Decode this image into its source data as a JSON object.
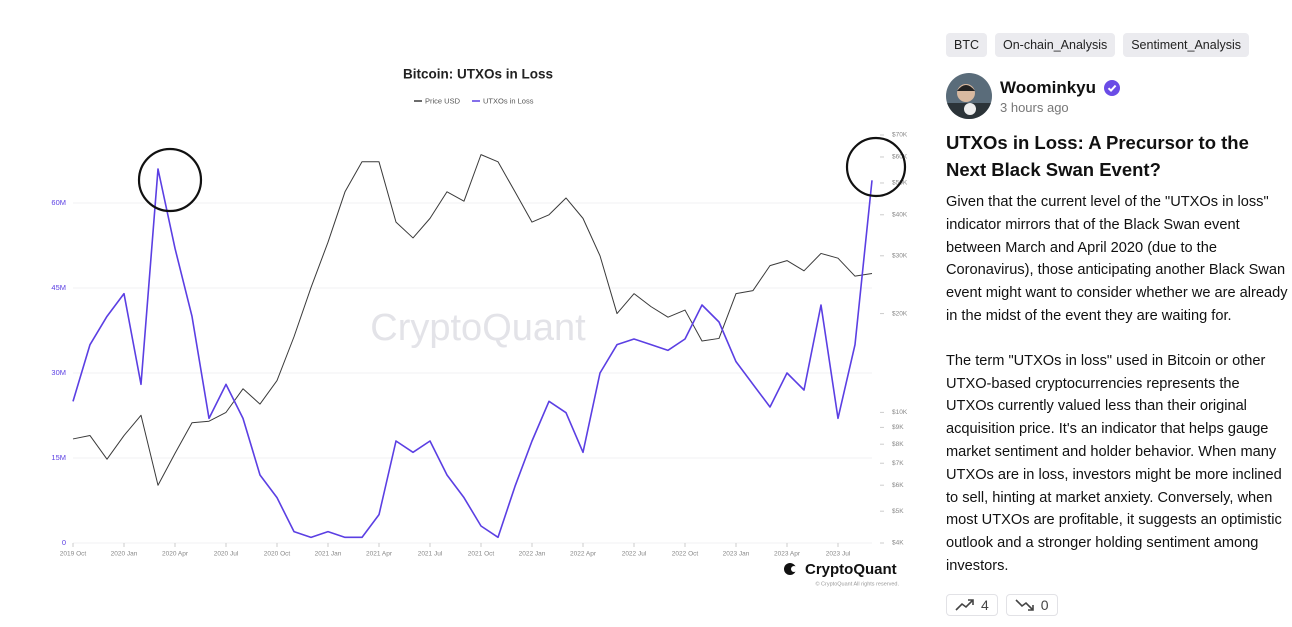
{
  "tags": [
    "BTC",
    "On-chain_Analysis",
    "Sentiment_Analysis"
  ],
  "author": {
    "name": "Woominkyu",
    "time": "3 hours ago"
  },
  "post": {
    "title": "UTXOs in Loss: A Precursor to the Next Black Swan Event?",
    "paragraphs": [
      "Given that the current level of the \"UTXOs in loss\" indicator mirrors that of the Black Swan event between March and April 2020 (due to the Coronavirus), those anticipating another Black Swan event might want to consider whether we are already in the midst of the event they are waiting for.",
      "The term \"UTXOs in loss\" used in Bitcoin or other UTXO-based cryptocurrencies represents the UTXOs currently valued less than their original acquisition price. It's an indicator that helps gauge market sentiment and holder behavior. When many UTXOs are in loss, investors might be more inclined to sell, hinting at market anxiety. Conversely, when most UTXOs are profitable, it suggests an optimistic outlook and a stronger holding sentiment among investors."
    ]
  },
  "reactions": [
    {
      "count": 4
    },
    {
      "count": 0
    }
  ],
  "chart_data": {
    "type": "line",
    "title": "Bitcoin: UTXOs in Loss",
    "watermark": "CryptoQuant",
    "source": "CryptoQuant",
    "copyright": "© CryptoQuant All rights reserved.",
    "categories": [
      "2019 Oct",
      null,
      null,
      "2020 Jan",
      null,
      null,
      "2020 Apr",
      null,
      null,
      "2020 Jul",
      null,
      null,
      "2020 Oct",
      null,
      null,
      "2021 Jan",
      null,
      null,
      "2021 Apr",
      null,
      null,
      "2021 Jul",
      null,
      null,
      "2021 Oct",
      null,
      null,
      "2022 Jan",
      null,
      null,
      "2022 Apr",
      null,
      null,
      "2022 Jul",
      null,
      null,
      "2022 Oct",
      null,
      null,
      "2023 Jan",
      null,
      null,
      "2023 Apr",
      null,
      null,
      "2023 Jul",
      null,
      null
    ],
    "series": [
      {
        "name": "Price USD",
        "color": "#3a3a3a",
        "axis": "y2",
        "values": [
          8300,
          8500,
          7200,
          8500,
          9800,
          6000,
          7500,
          9300,
          9400,
          10000,
          11800,
          10600,
          12500,
          17000,
          24000,
          33000,
          47000,
          58000,
          58000,
          38000,
          34000,
          39000,
          47000,
          44000,
          61000,
          58000,
          47000,
          38000,
          40000,
          45000,
          39000,
          30000,
          20000,
          23000,
          21000,
          19500,
          20500,
          16500,
          16800,
          23000,
          23500,
          28000,
          29000,
          27000,
          30500,
          29500,
          26000,
          26500
        ]
      },
      {
        "name": "UTXOs in Loss",
        "color": "#5b3fe3",
        "values": [
          25000000,
          35000000,
          40000000,
          44000000,
          28000000,
          66000000,
          52000000,
          40000000,
          22000000,
          28000000,
          22000000,
          12000000,
          8000000,
          2000000,
          1000000,
          2000000,
          1000000,
          1000000,
          5000000,
          18000000,
          16000000,
          18000000,
          12000000,
          8000000,
          3000000,
          1000000,
          10000000,
          18000000,
          25000000,
          23000000,
          16000000,
          30000000,
          35000000,
          36000000,
          35000000,
          34000000,
          36000000,
          42000000,
          39000000,
          32000000,
          28000000,
          24000000,
          30000000,
          27000000,
          42000000,
          22000000,
          35000000,
          64000000
        ]
      }
    ],
    "ylim": [
      0,
      72000000
    ],
    "yticks": [
      0,
      {
        "value": 15000000,
        "label": "15M"
      },
      {
        "value": 30000000,
        "label": "30M"
      },
      {
        "value": 45000000,
        "label": "45M"
      },
      {
        "value": 60000000,
        "label": "60M"
      }
    ],
    "y2lim": [
      4000,
      70000
    ],
    "y2scale": "log",
    "y2ticks": [
      {
        "value": 4000,
        "label": "$4K"
      },
      {
        "value": 5000,
        "label": "$5K"
      },
      {
        "value": 6000,
        "label": "$6K"
      },
      {
        "value": 7000,
        "label": "$7K"
      },
      {
        "value": 8000,
        "label": "$8K"
      },
      {
        "value": 9000,
        "label": "$9K"
      },
      {
        "value": 10000,
        "label": "$10K"
      },
      {
        "value": 20000,
        "label": "$20K"
      },
      {
        "value": 30000,
        "label": "$30K"
      },
      {
        "value": 40000,
        "label": "$40K"
      },
      {
        "value": 50000,
        "label": "$50K"
      },
      {
        "value": 60000,
        "label": "$60K"
      },
      {
        "value": 70000,
        "label": "$70K"
      }
    ],
    "grid": true,
    "legend": "top"
  }
}
